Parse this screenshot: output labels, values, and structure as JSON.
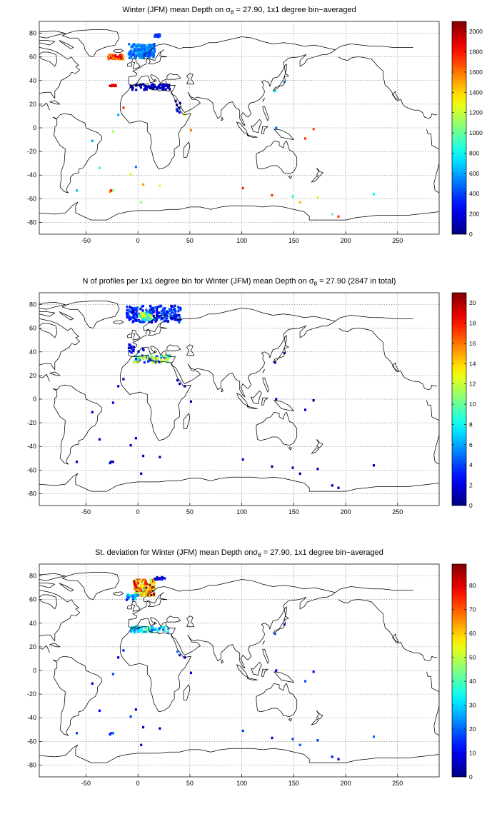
{
  "figure": {
    "panels": [
      {
        "title_pre": "Winter (JFM) mean Depth on σ",
        "title_sub": "θ",
        "title_post": " = 27.90, 1x1 degree bin−averaged",
        "colorbar": {
          "min": 0,
          "max": 2100,
          "ticks": [
            0,
            200,
            400,
            600,
            800,
            1000,
            1200,
            1400,
            1600,
            1800,
            2000
          ]
        }
      },
      {
        "title_pre": "N of profiles per 1x1 degree bin for Winter (JFM) mean Depth on σ",
        "title_sub": "θ",
        "title_post": " = 27.90 (2847 in total)",
        "colorbar": {
          "min": 0,
          "max": 21,
          "ticks": [
            0,
            2,
            4,
            6,
            8,
            10,
            12,
            14,
            16,
            18,
            20
          ]
        }
      },
      {
        "title_pre": "St. deviation for Winter (JFM) mean Depth onσ",
        "title_sub": "θ",
        "title_post": " = 27.90, 1x1 degree bin−averaged",
        "colorbar": {
          "min": 0,
          "max": 89,
          "ticks": [
            0,
            10,
            20,
            30,
            40,
            50,
            60,
            70,
            80
          ]
        }
      }
    ],
    "x_axis": {
      "min": -95,
      "max": 290,
      "ticks": [
        -50,
        0,
        50,
        100,
        150,
        200,
        250
      ]
    },
    "y_axis": {
      "min": -90,
      "max": 90,
      "ticks": [
        -80,
        -60,
        -40,
        -20,
        0,
        20,
        40,
        60,
        80
      ]
    },
    "grid": true,
    "colormap": "jet"
  }
}
